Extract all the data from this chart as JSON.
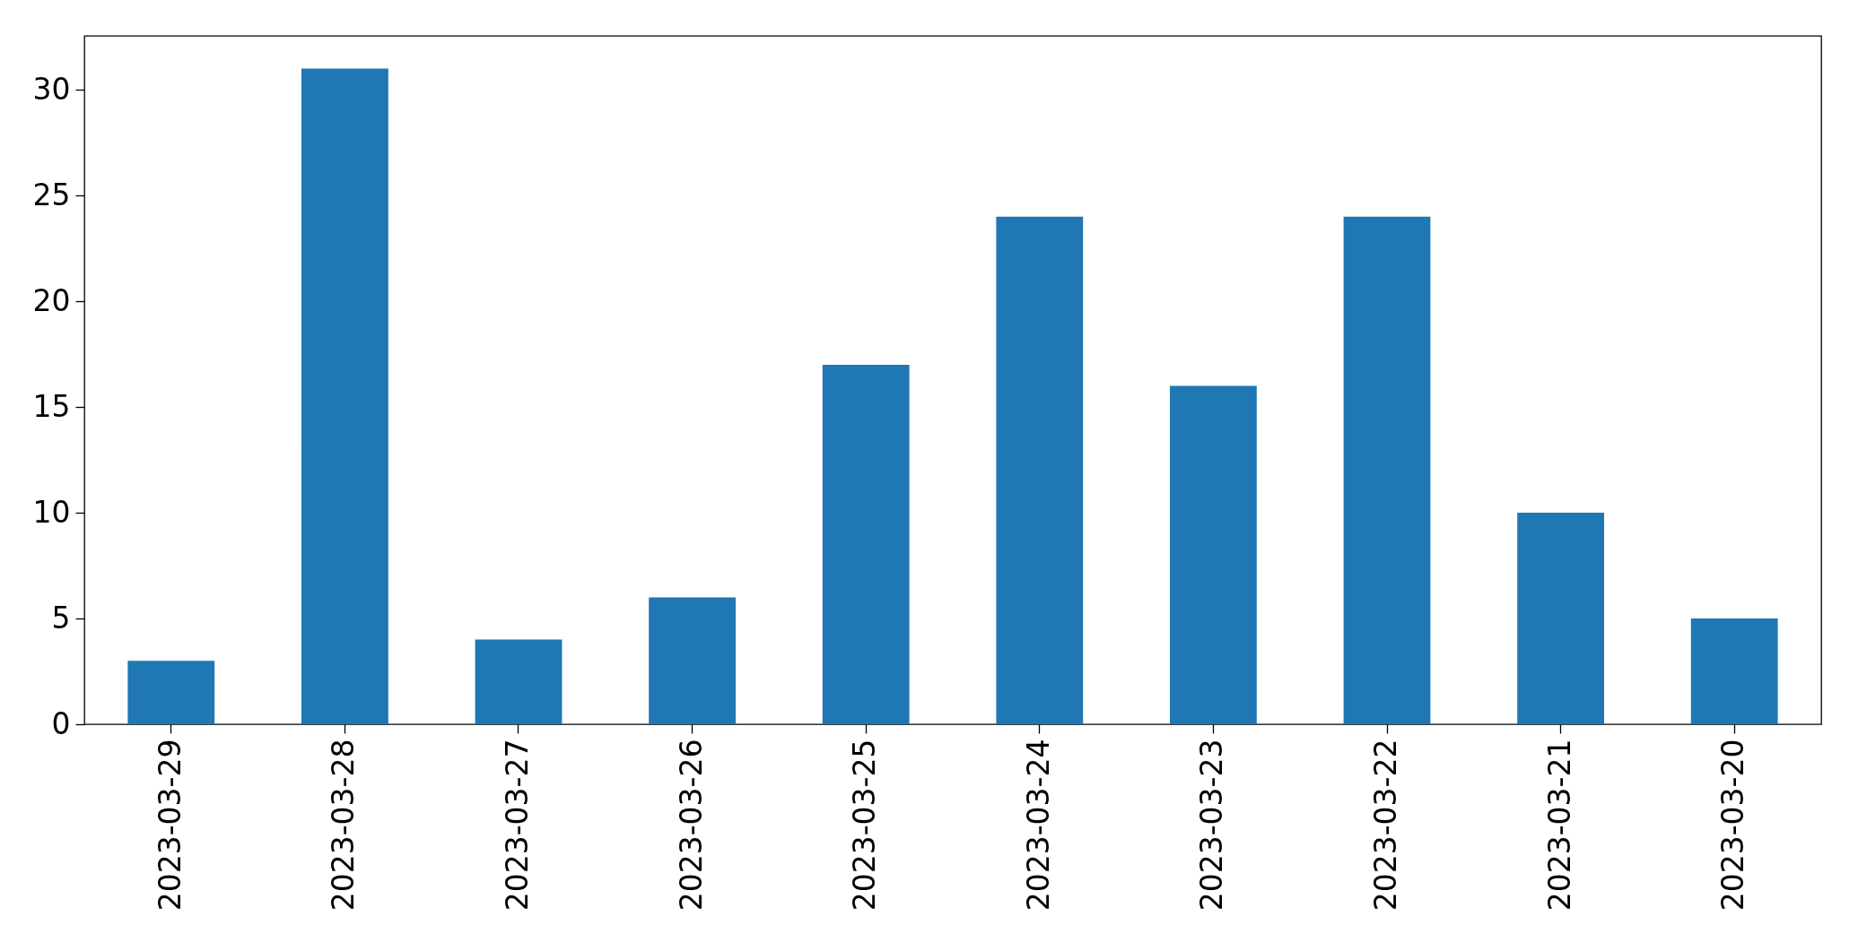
{
  "chart_data": {
    "type": "bar",
    "categories": [
      "2023-03-29",
      "2023-03-28",
      "2023-03-27",
      "2023-03-26",
      "2023-03-25",
      "2023-03-24",
      "2023-03-23",
      "2023-03-22",
      "2023-03-21",
      "2023-03-20"
    ],
    "values": [
      3,
      31,
      4,
      6,
      17,
      24,
      16,
      24,
      10,
      5
    ],
    "color": "#1f77b4",
    "ylim": [
      0,
      32.55
    ],
    "yticks": [
      0,
      5,
      10,
      15,
      20,
      25,
      30
    ],
    "grid": false
  }
}
